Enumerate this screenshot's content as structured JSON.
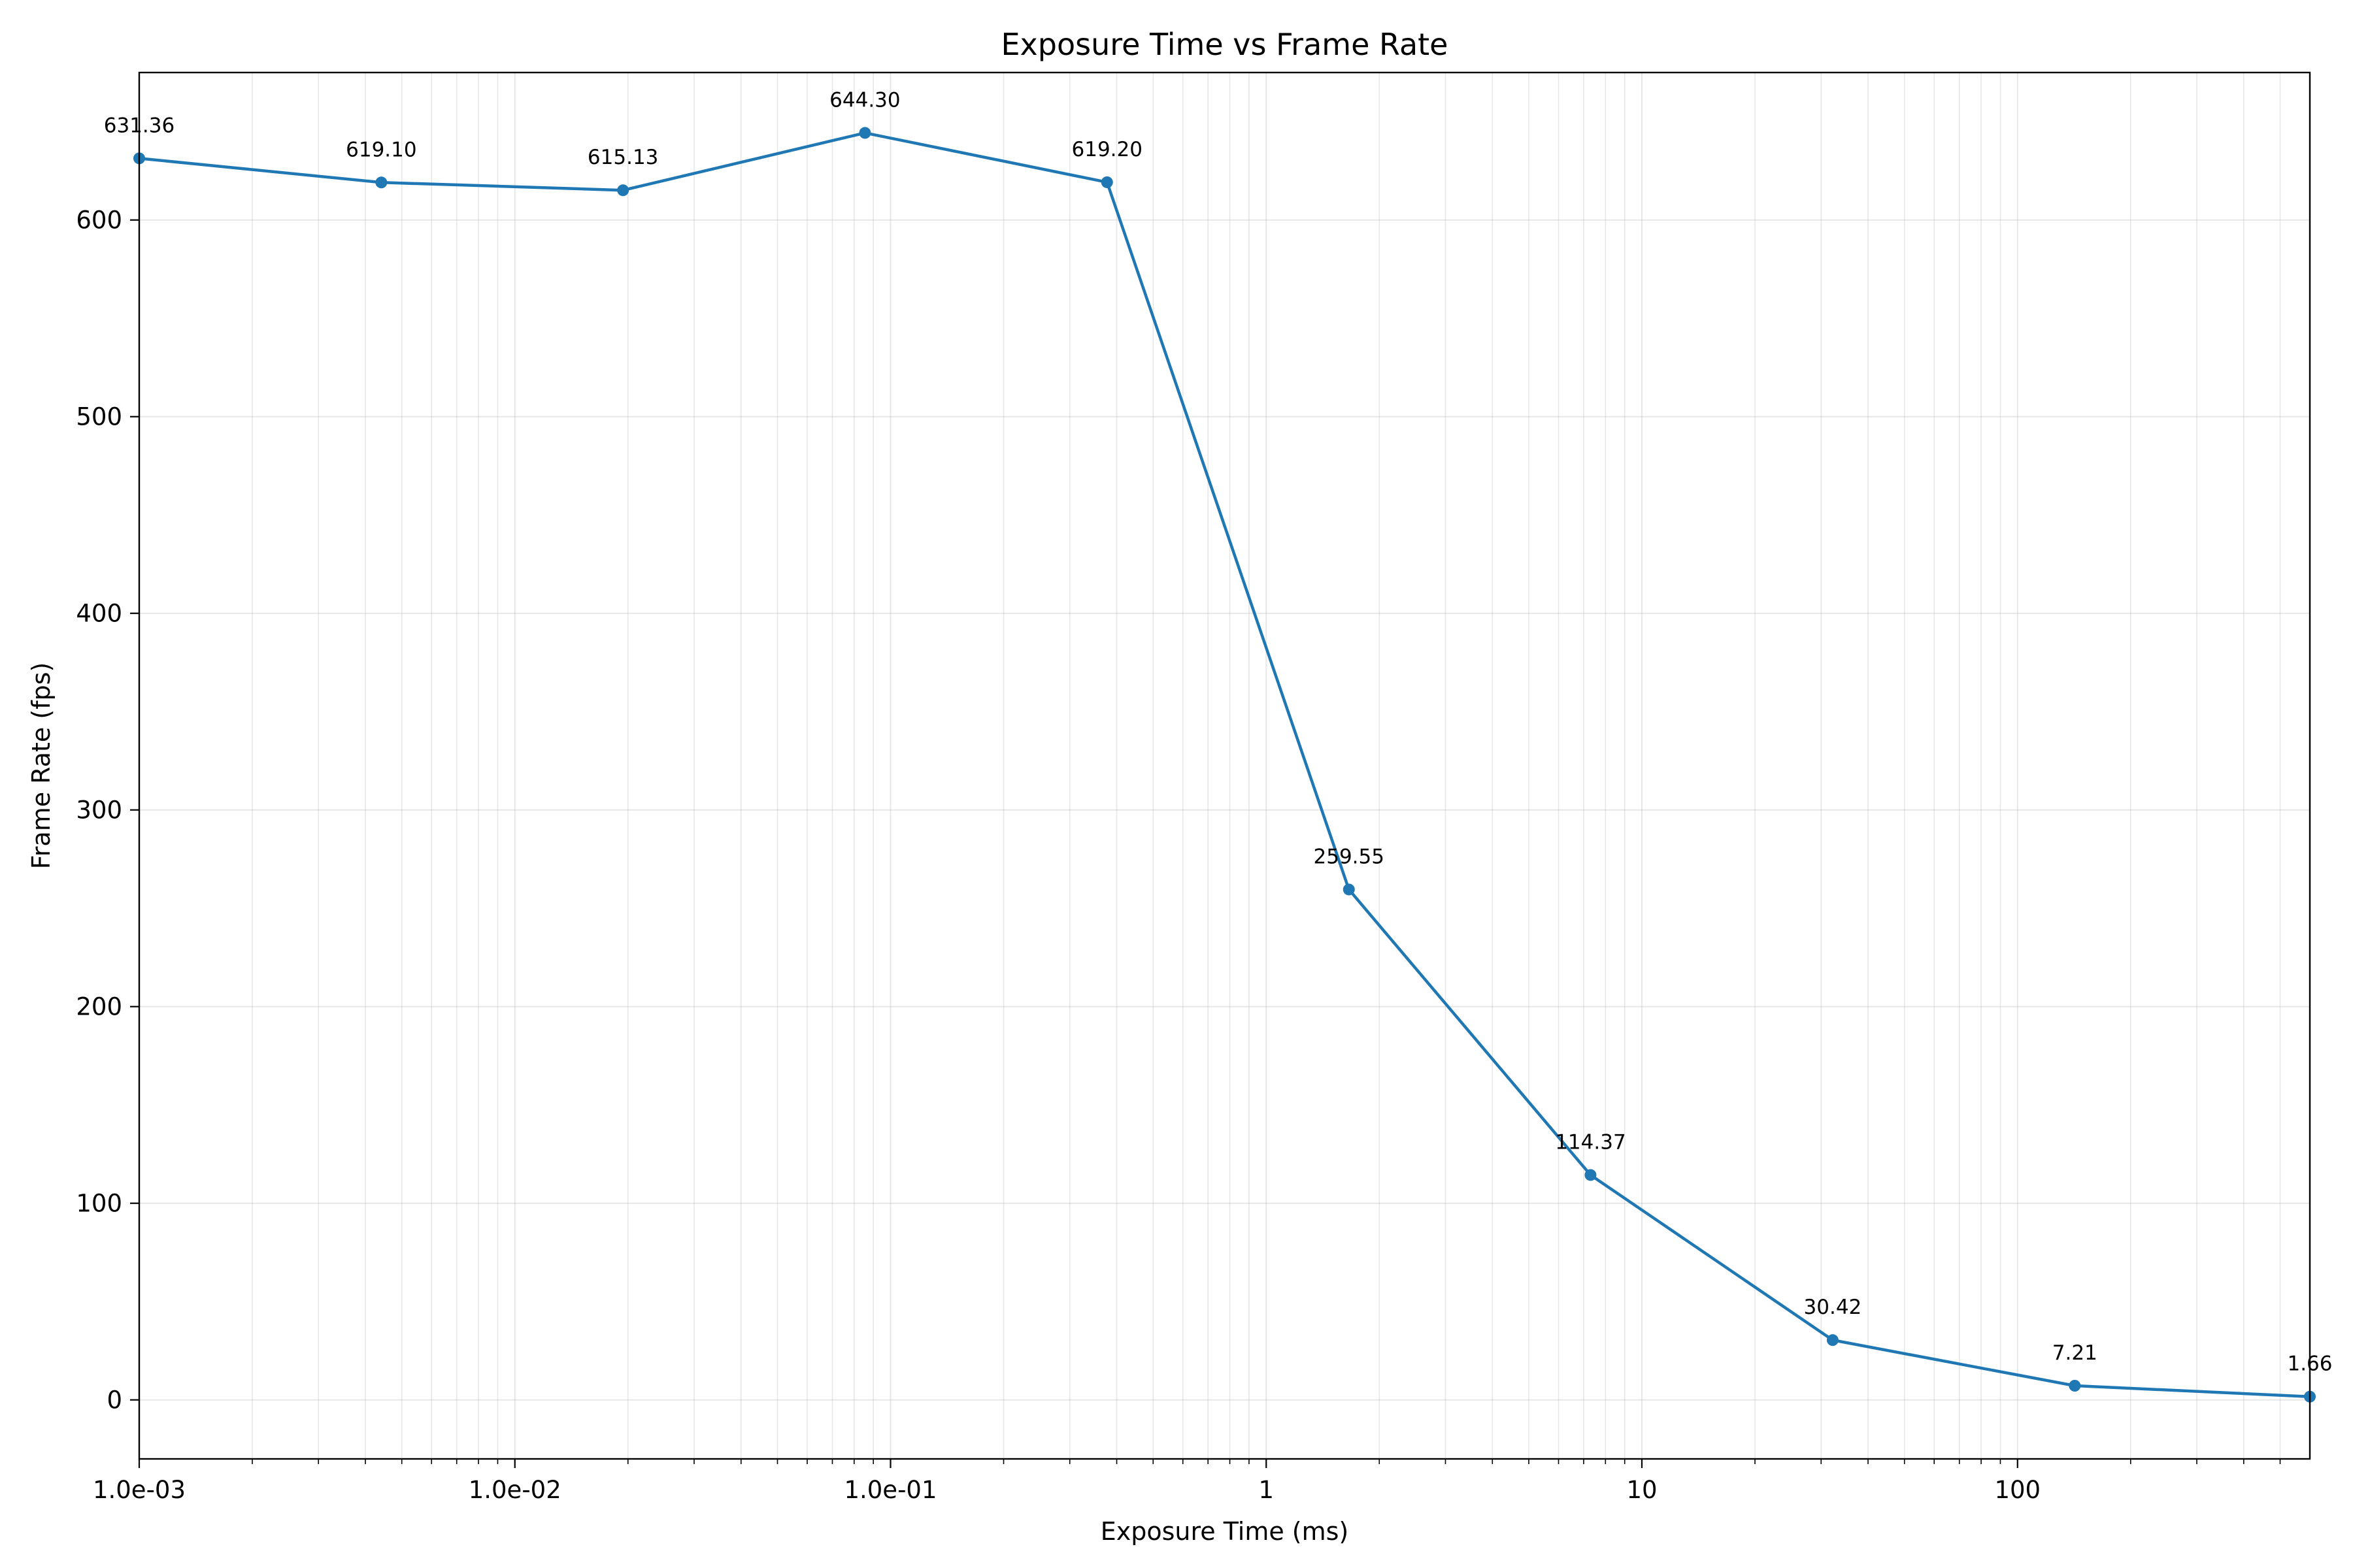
{
  "chart_data": {
    "type": "line",
    "title": "Exposure Time vs Frame Rate",
    "xlabel": "Exposure Time (ms)",
    "ylabel": "Frame Rate (fps)",
    "xscale": "log",
    "xlim": [
      0.001,
      600
    ],
    "ylim": [
      -30,
      675
    ],
    "grid": true,
    "line_color": "#1f77b4",
    "x_ticks": [
      {
        "value": 0.001,
        "label": "1.0e-03"
      },
      {
        "value": 0.01,
        "label": "1.0e-02"
      },
      {
        "value": 0.1,
        "label": "1.0e-01"
      },
      {
        "value": 1,
        "label": "1"
      },
      {
        "value": 10,
        "label": "10"
      },
      {
        "value": 100,
        "label": "100"
      }
    ],
    "y_ticks": [
      {
        "value": 0,
        "label": "0"
      },
      {
        "value": 100,
        "label": "100"
      },
      {
        "value": 200,
        "label": "200"
      },
      {
        "value": 300,
        "label": "300"
      },
      {
        "value": 400,
        "label": "400"
      },
      {
        "value": 500,
        "label": "500"
      },
      {
        "value": 600,
        "label": "600"
      }
    ],
    "series": [
      {
        "x": [
          0.001,
          0.00441,
          0.0194,
          0.0855,
          0.377,
          1.66,
          7.3,
          32.2,
          142,
          600
        ],
        "y": [
          631.36,
          619.1,
          615.13,
          644.3,
          619.2,
          259.55,
          114.37,
          30.42,
          7.21,
          1.66
        ],
        "labels": [
          "631.36",
          "619.10",
          "615.13",
          "644.30",
          "619.20",
          "259.55",
          "114.37",
          "30.42",
          "7.21",
          "1.66"
        ]
      }
    ]
  }
}
